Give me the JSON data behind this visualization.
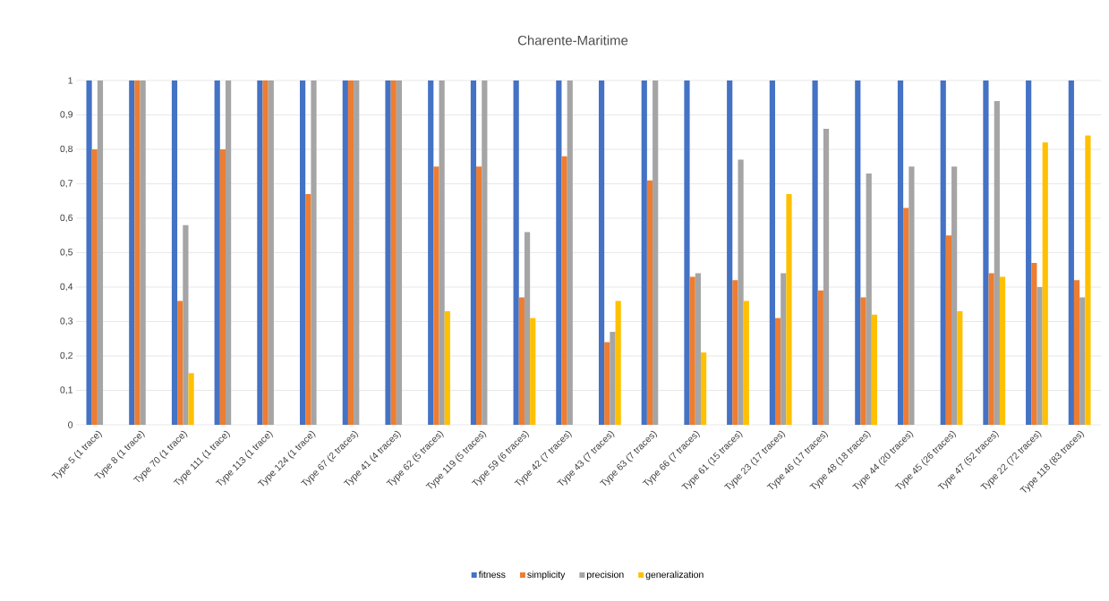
{
  "chart_data": {
    "type": "bar",
    "title": "Charente-Maritime",
    "categories": [
      "Type 5 (1 trace)",
      "Type 8 (1 trace)",
      "Type 70 (1 trace)",
      "Type 111 (1 trace)",
      "Type 113 (1 trace)",
      "Type 124 (1 trace)",
      "Type 67 (2 traces)",
      "Type 41 (4 traces)",
      "Type 62 (5 traces)",
      "Type 119 (5 traces)",
      "Type 59 (6 traces)",
      "Type 42 (7 traces)",
      "Type 43 (7 traces)",
      "Type 63 (7 traces)",
      "Type 66 (7 traces)",
      "Type 61 (15 traces)",
      "Type 23 (17 traces)",
      "Type 46 (17 traces)",
      "Type 48 (18 traces)",
      "Type 44 (20 traces)",
      "Type 45 (26 traces)",
      "Type 47 (52 traces)",
      "Type 22 (72 traces)",
      "Type 118 (83 traces)"
    ],
    "series": [
      {
        "name": "fitness",
        "color": "#4472c4",
        "values": [
          1,
          1,
          1,
          1,
          1,
          1,
          1,
          1,
          1,
          1,
          1,
          1,
          1,
          1,
          1,
          1,
          1,
          1,
          1,
          1,
          1,
          1,
          1,
          1
        ]
      },
      {
        "name": "simplicity",
        "color": "#ed7d31",
        "values": [
          0.8,
          1,
          0.36,
          0.8,
          1,
          0.67,
          1,
          1,
          0.75,
          0.75,
          0.37,
          0.78,
          0.24,
          0.71,
          0.43,
          0.42,
          0.31,
          0.39,
          0.37,
          0.63,
          0.55,
          0.44,
          0.47,
          0.42
        ]
      },
      {
        "name": "precision",
        "color": "#a5a5a5",
        "values": [
          1,
          1,
          0.58,
          1,
          1,
          1,
          1,
          1,
          1,
          1,
          0.56,
          1,
          0.27,
          1,
          0.44,
          0.77,
          0.44,
          0.86,
          0.73,
          0.75,
          0.75,
          0.94,
          0.4,
          0.37
        ]
      },
      {
        "name": "generalization",
        "color": "#ffc000",
        "values": [
          0,
          0,
          0.15,
          0,
          0,
          0,
          0,
          0,
          0.33,
          0,
          0.31,
          0,
          0.36,
          0,
          0.21,
          0.36,
          0.67,
          0,
          0.32,
          0,
          0.33,
          0.43,
          0.82,
          0.84
        ]
      }
    ],
    "ylim": [
      0,
      1
    ],
    "yticks": [
      0,
      {
        "value": 0.1,
        "label": "0,1"
      },
      {
        "value": 0.2,
        "label": "0,2"
      },
      {
        "value": 0.3,
        "label": "0,3"
      },
      {
        "value": 0.4,
        "label": "0,4"
      },
      {
        "value": 0.5,
        "label": "0,5"
      },
      {
        "value": 0.6,
        "label": "0,6"
      },
      {
        "value": 0.7,
        "label": "0,7"
      },
      {
        "value": 0.8,
        "label": "0,8"
      },
      {
        "value": 0.9,
        "label": "0,9"
      },
      1
    ],
    "grid": "y",
    "legend": "bottom"
  }
}
